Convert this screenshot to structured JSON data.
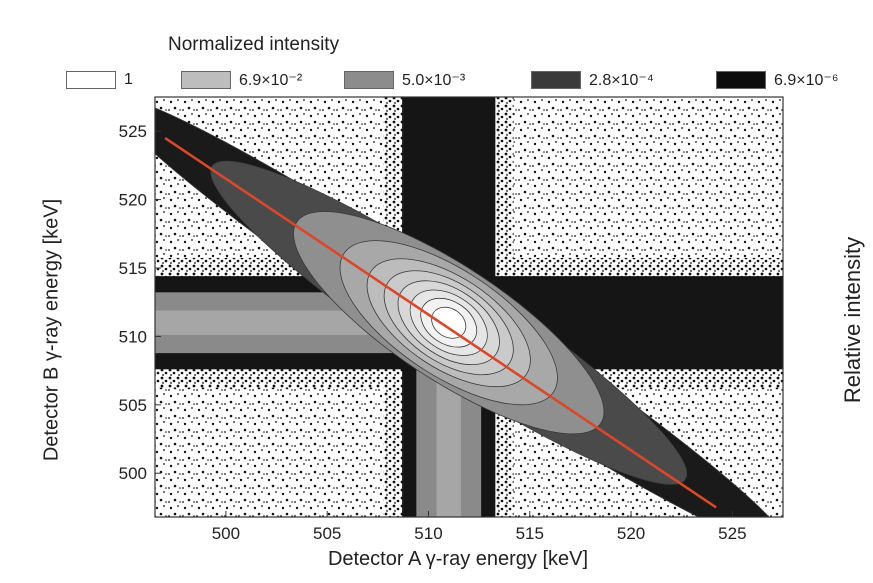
{
  "chart_data": {
    "type": "heatmap",
    "title": "",
    "legend_title": "Normalized intensity",
    "legend": [
      {
        "label": "1",
        "color": "#ffffff"
      },
      {
        "label": "6.9×10⁻²",
        "color": "#bdbdbd"
      },
      {
        "label": "5.0×10⁻³",
        "color": "#8c8c8c"
      },
      {
        "label": "2.8×10⁻⁴",
        "color": "#3a3a3a"
      },
      {
        "label": "6.9×10⁻⁶",
        "color": "#0d0d0d"
      }
    ],
    "xlabel": "Detector A  γ-ray energy [keV]",
    "ylabel": "Detector B  γ-ray energy [keV]",
    "right_label": "Relative intensity",
    "xlim": [
      496.5,
      527.5
    ],
    "ylim": [
      496.8,
      527.5
    ],
    "xticks": [
      500,
      505,
      510,
      515,
      520,
      525
    ],
    "yticks": [
      500,
      505,
      510,
      515,
      520,
      525
    ],
    "peak": {
      "x": 511,
      "y": 511
    },
    "fit_line": {
      "x": [
        497,
        524.2
      ],
      "y": [
        524.5,
        497.5
      ],
      "color": "#d9482b"
    }
  }
}
